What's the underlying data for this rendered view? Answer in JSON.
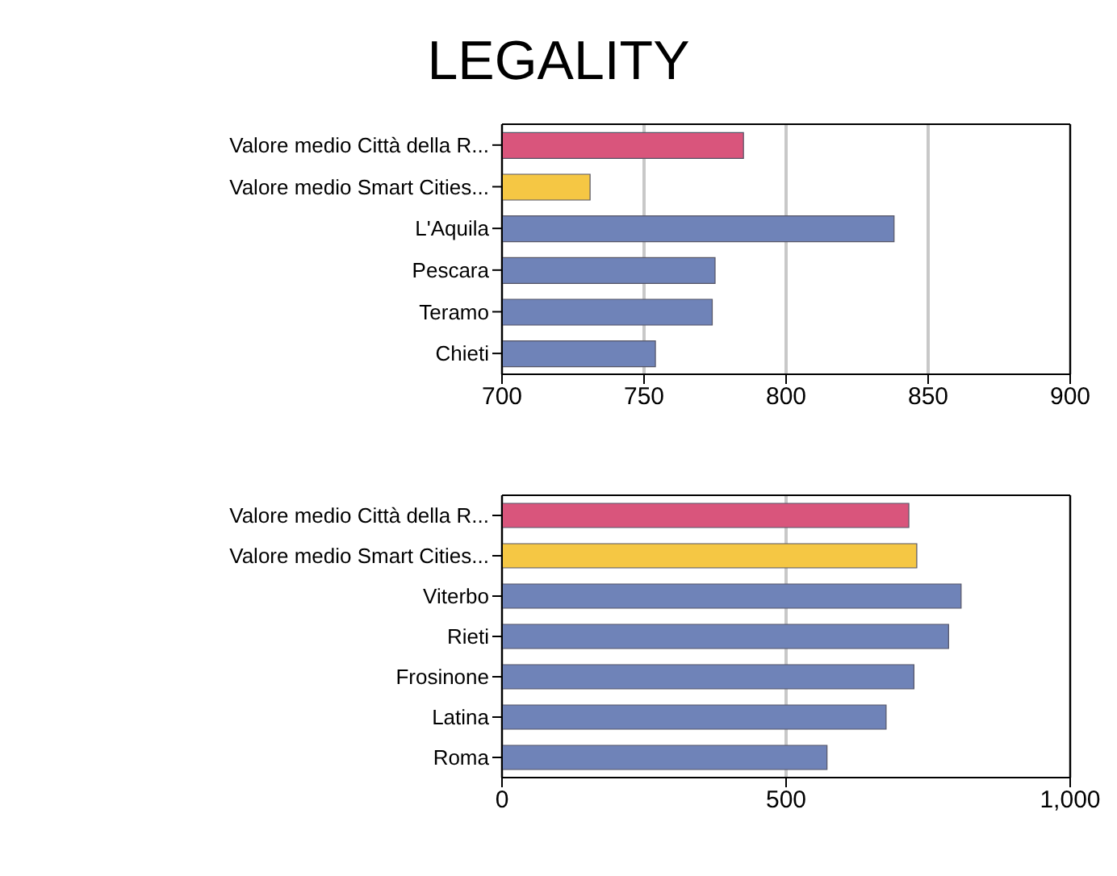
{
  "chart_data": [
    {
      "type": "bar",
      "title": "LEGALITY",
      "orientation": "horizontal",
      "categories": [
        "Valore medio Città della R...",
        "Valore medio Smart Cities...",
        "L'Aquila",
        "Pescara",
        "Teramo",
        "Chieti"
      ],
      "values": [
        785,
        731,
        838,
        775,
        774,
        754
      ],
      "colors": [
        "#d9557c",
        "#f5c744",
        "#6f83b8",
        "#6f83b8",
        "#6f83b8",
        "#6f83b8"
      ],
      "xlim": [
        700,
        900
      ],
      "xticks": [
        700,
        750,
        800,
        850,
        900
      ],
      "grid": "x"
    },
    {
      "type": "bar",
      "orientation": "horizontal",
      "categories": [
        "Valore medio Città della R...",
        "Valore medio Smart Cities...",
        "Viterbo",
        "Rieti",
        "Frosinone",
        "Latina",
        "Roma"
      ],
      "values": [
        716,
        730,
        808,
        786,
        725,
        676,
        572
      ],
      "colors": [
        "#d9557c",
        "#f5c744",
        "#6f83b8",
        "#6f83b8",
        "#6f83b8",
        "#6f83b8",
        "#6f83b8"
      ],
      "xlim": [
        0,
        1000
      ],
      "xticks": [
        0,
        500,
        {
          "value": 1000,
          "label": "1,000"
        }
      ],
      "grid": "x"
    }
  ]
}
